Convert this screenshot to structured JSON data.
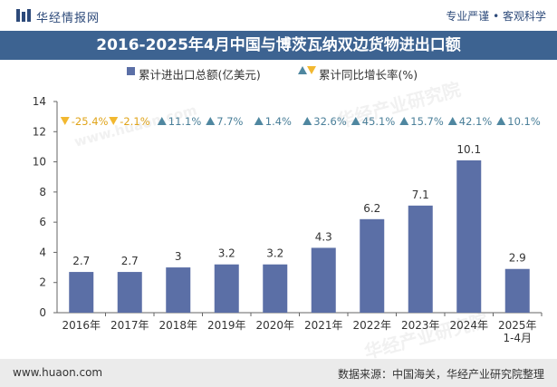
{
  "header": {
    "brand": "华经情报网",
    "slogan": "专业严谨 • 客观科学"
  },
  "title": "2016-2025年4月中国与博茨瓦纳双边货物进出口额",
  "legend": {
    "bar_label": "累计进出口总额(亿美元)",
    "line_label": "累计同比增长率(%)"
  },
  "footer": {
    "website": "www.huaon.com",
    "source": "数据来源：中国海关，华经产业研究院整理"
  },
  "colors": {
    "bar": "#5b6fa6",
    "up": "#4f87a0",
    "down": "#f2b830",
    "title_bg": "#3d6391"
  },
  "watermark": {
    "text": "华经产业研究院",
    "url": "www.huaon.com"
  },
  "chart_data": {
    "type": "bar",
    "categories": [
      "2016年",
      "2017年",
      "2018年",
      "2019年",
      "2020年",
      "2021年",
      "2022年",
      "2023年",
      "2024年",
      "2025年\n1-4月"
    ],
    "series": [
      {
        "name": "累计进出口总额(亿美元)",
        "values": [
          2.7,
          2.7,
          3,
          3.2,
          3.2,
          4.3,
          6.2,
          7.1,
          10.1,
          2.9
        ],
        "value_labels": [
          "2.7",
          "2.7",
          "3",
          "3.2",
          "3.2",
          "4.3",
          "6.2",
          "7.1",
          "10.1",
          "2.9"
        ]
      },
      {
        "name": "累计同比增长率(%)",
        "values": [
          -25.4,
          -2.1,
          11.1,
          7.7,
          1.4,
          32.6,
          45.1,
          15.7,
          42.1,
          10.1
        ],
        "value_labels": [
          "-25.4%",
          "-2.1%",
          "11.1%",
          "7.7%",
          "1.4%",
          "32.6%",
          "45.1%",
          "15.7%",
          "42.1%",
          "10.1%"
        ]
      }
    ],
    "ylim": [
      0,
      14
    ],
    "yticks": [
      0,
      2,
      4,
      6,
      8,
      10,
      12,
      14
    ],
    "grid": false,
    "legend_position": "top-center"
  }
}
